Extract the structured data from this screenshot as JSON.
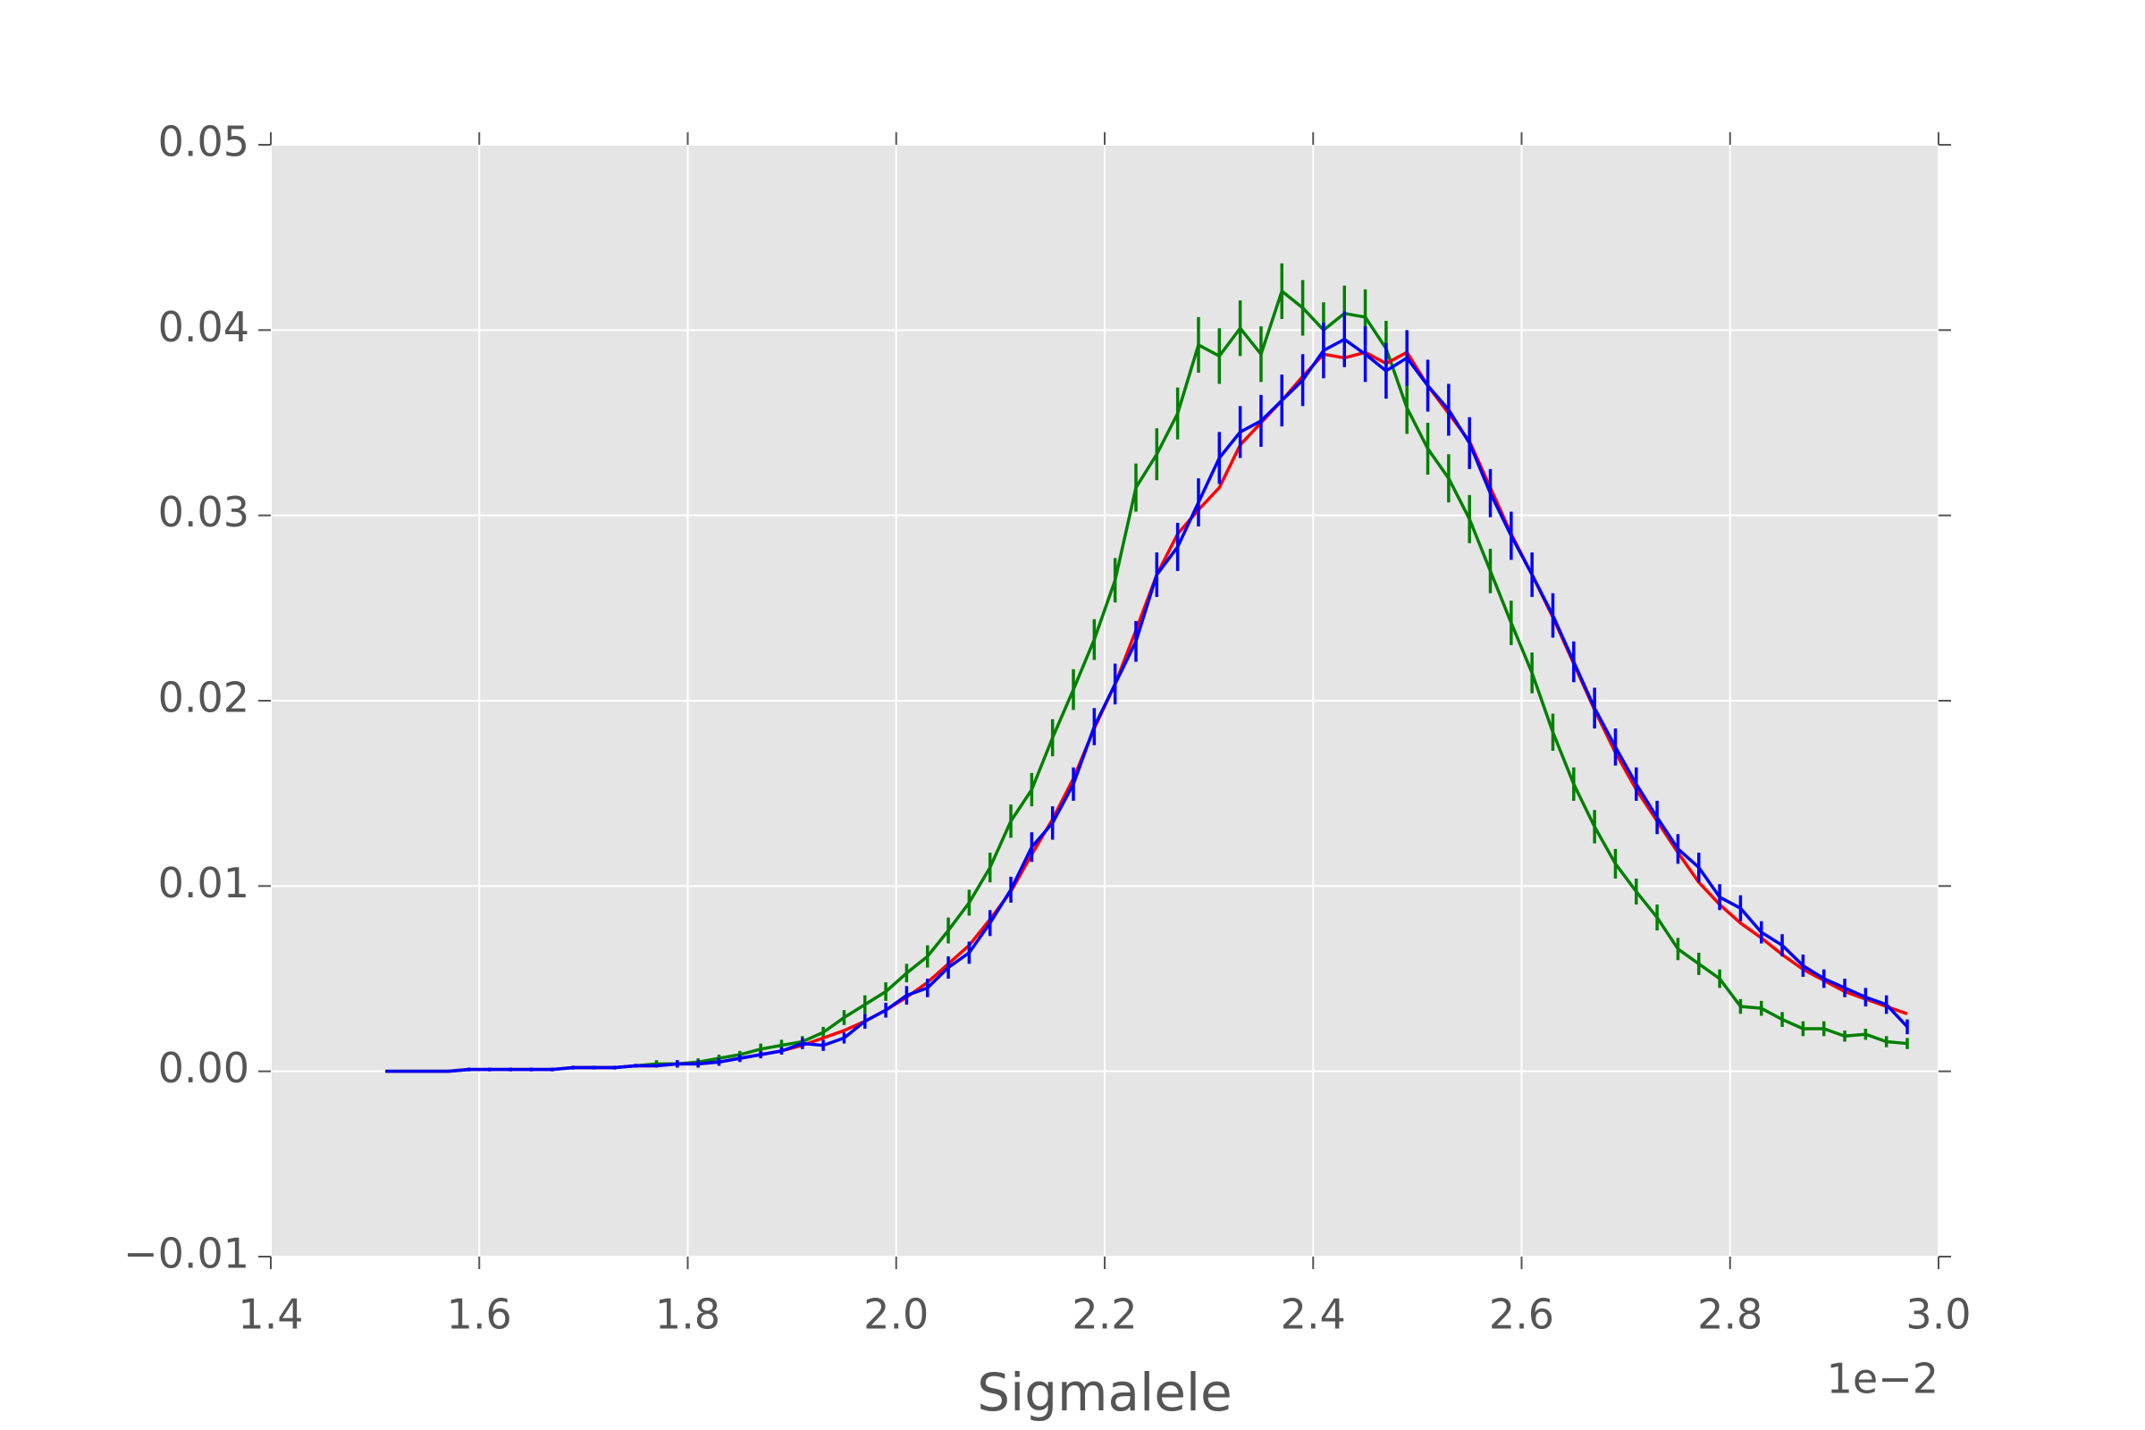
{
  "chart_data": {
    "type": "line",
    "xlabel": "Sigmalele",
    "x_offset_label": "1e−2",
    "x": [
      1.51,
      1.53,
      1.55,
      1.57,
      1.59,
      1.61,
      1.63,
      1.65,
      1.67,
      1.69,
      1.71,
      1.73,
      1.75,
      1.77,
      1.79,
      1.81,
      1.83,
      1.85,
      1.87,
      1.89,
      1.91,
      1.93,
      1.95,
      1.97,
      1.99,
      2.01,
      2.03,
      2.05,
      2.07,
      2.09,
      2.11,
      2.13,
      2.15,
      2.17,
      2.19,
      2.21,
      2.23,
      2.25,
      2.27,
      2.29,
      2.31,
      2.33,
      2.35,
      2.37,
      2.39,
      2.41,
      2.43,
      2.45,
      2.47,
      2.49,
      2.51,
      2.53,
      2.55,
      2.57,
      2.59,
      2.61,
      2.63,
      2.65,
      2.67,
      2.69,
      2.71,
      2.73,
      2.75,
      2.77,
      2.79,
      2.81,
      2.83,
      2.85,
      2.87,
      2.89,
      2.91,
      2.93,
      2.95,
      2.97
    ],
    "series": [
      {
        "color": "#008000",
        "values": [
          0,
          0,
          0,
          0,
          0.0001,
          0.0001,
          0.0001,
          0.0001,
          0.0001,
          0.0002,
          0.0002,
          0.0002,
          0.0003,
          0.0004,
          0.0004,
          0.0005,
          0.0007,
          0.0009,
          0.0012,
          0.0014,
          0.0016,
          0.0021,
          0.0029,
          0.0036,
          0.0043,
          0.0053,
          0.0062,
          0.0076,
          0.0091,
          0.011,
          0.0135,
          0.0152,
          0.018,
          0.0206,
          0.0233,
          0.0265,
          0.0315,
          0.0333,
          0.0355,
          0.0392,
          0.0386,
          0.0401,
          0.0387,
          0.0421,
          0.0412,
          0.04,
          0.0409,
          0.0407,
          0.039,
          0.0358,
          0.0336,
          0.032,
          0.0298,
          0.027,
          0.0242,
          0.0215,
          0.0183,
          0.0155,
          0.0132,
          0.0112,
          0.0097,
          0.0083,
          0.0066,
          0.0058,
          0.005,
          0.0035,
          0.0034,
          0.0028,
          0.0023,
          0.0023,
          0.0019,
          0.002,
          0.0016,
          0.0015
        ],
        "errors": [
          0,
          0,
          0,
          0,
          0.0001,
          0.0001,
          0.0001,
          0.0001,
          0.0001,
          0.0001,
          0.0001,
          0.0001,
          0.0001,
          0.0002,
          0.0002,
          0.0002,
          0.0002,
          0.0002,
          0.0003,
          0.0003,
          0.0003,
          0.0003,
          0.0004,
          0.0005,
          0.0005,
          0.0005,
          0.0006,
          0.0007,
          0.0007,
          0.0008,
          0.0009,
          0.0009,
          0.001,
          0.0011,
          0.0011,
          0.0012,
          0.0013,
          0.0014,
          0.0014,
          0.0015,
          0.0015,
          0.0015,
          0.0015,
          0.0015,
          0.0015,
          0.0015,
          0.0015,
          0.0015,
          0.0015,
          0.0014,
          0.0014,
          0.0013,
          0.0013,
          0.0012,
          0.0012,
          0.0011,
          0.001,
          0.0009,
          0.0009,
          0.0008,
          0.0007,
          0.0007,
          0.0006,
          0.0006,
          0.0005,
          0.0004,
          0.0004,
          0.0004,
          0.0004,
          0.0004,
          0.0003,
          0.0003,
          0.0003,
          0.0003
        ]
      },
      {
        "color": "#ff0000",
        "values": [
          0,
          0,
          0,
          0,
          0.0001,
          0.0001,
          0.0001,
          0.0001,
          0.0001,
          0.0002,
          0.0002,
          0.0002,
          0.0003,
          0.0003,
          0.0004,
          0.0004,
          0.0005,
          0.0007,
          0.0009,
          0.0011,
          0.0014,
          0.0018,
          0.0022,
          0.0027,
          0.0033,
          0.004,
          0.0048,
          0.0058,
          0.0068,
          0.0082,
          0.0097,
          0.0117,
          0.0136,
          0.0158,
          0.0185,
          0.0209,
          0.0238,
          0.0268,
          0.029,
          0.0303,
          0.0315,
          0.0338,
          0.035,
          0.0362,
          0.0375,
          0.0387,
          0.0385,
          0.0388,
          0.0382,
          0.0388,
          0.037,
          0.0355,
          0.034,
          0.0315,
          0.029,
          0.0268,
          0.0245,
          0.022,
          0.0195,
          0.0172,
          0.0152,
          0.0135,
          0.0118,
          0.0102,
          0.009,
          0.008,
          0.0072,
          0.0063,
          0.0055,
          0.0049,
          0.0043,
          0.0039,
          0.0035,
          0.0031
        ]
      },
      {
        "color": "#0000ff",
        "values": [
          0,
          0,
          0,
          0,
          0.0001,
          0.0001,
          0.0001,
          0.0001,
          0.0001,
          0.0002,
          0.0002,
          0.0002,
          0.0003,
          0.0003,
          0.0004,
          0.0004,
          0.0005,
          0.0007,
          0.0009,
          0.0011,
          0.0015,
          0.0014,
          0.0018,
          0.0027,
          0.0033,
          0.0041,
          0.0045,
          0.0056,
          0.0064,
          0.008,
          0.0098,
          0.0121,
          0.0134,
          0.0155,
          0.0186,
          0.0209,
          0.0232,
          0.0268,
          0.0283,
          0.0307,
          0.0331,
          0.0345,
          0.0351,
          0.0362,
          0.0373,
          0.0389,
          0.0395,
          0.0387,
          0.0378,
          0.0385,
          0.037,
          0.0357,
          0.0339,
          0.0312,
          0.0289,
          0.0268,
          0.0246,
          0.0221,
          0.0196,
          0.0175,
          0.0155,
          0.0137,
          0.012,
          0.011,
          0.0094,
          0.0088,
          0.0075,
          0.0068,
          0.0057,
          0.005,
          0.0045,
          0.004,
          0.0036,
          0.0024
        ],
        "errors": [
          0,
          0,
          0,
          0,
          0.0001,
          0.0001,
          0.0001,
          0.0001,
          0.0001,
          0.0001,
          0.0001,
          0.0001,
          0.0001,
          0.0001,
          0.0002,
          0.0002,
          0.0002,
          0.0002,
          0.0002,
          0.0002,
          0.0003,
          0.0003,
          0.0003,
          0.0004,
          0.0004,
          0.0005,
          0.0005,
          0.0006,
          0.0006,
          0.0007,
          0.0007,
          0.0008,
          0.0009,
          0.0009,
          0.001,
          0.0011,
          0.0011,
          0.0012,
          0.0013,
          0.0013,
          0.0014,
          0.0014,
          0.0014,
          0.0014,
          0.0014,
          0.0015,
          0.0015,
          0.0015,
          0.0015,
          0.0015,
          0.0014,
          0.0014,
          0.0014,
          0.0013,
          0.0013,
          0.0012,
          0.0012,
          0.0011,
          0.0011,
          0.001,
          0.0009,
          0.0009,
          0.0008,
          0.0008,
          0.0007,
          0.0007,
          0.0006,
          0.0006,
          0.0006,
          0.0005,
          0.0005,
          0.0005,
          0.0005,
          0.0004
        ]
      }
    ],
    "xlim": [
      1.4,
      3.0
    ],
    "xticks": [
      1.4,
      1.6,
      1.8,
      {
        "value": 2,
        "label": "2.0"
      },
      2.2,
      2.4,
      2.6,
      2.8,
      {
        "value": 3,
        "label": "3.0"
      }
    ],
    "ylim": [
      -0.01,
      0.05
    ],
    "yticks": [
      {
        "value": -0.01,
        "label": "−0.01"
      },
      {
        "value": 0,
        "label": "0.00"
      },
      0.01,
      0.02,
      0.03,
      0.04,
      0.05
    ],
    "grid": true,
    "background": "#e5e5e5"
  }
}
